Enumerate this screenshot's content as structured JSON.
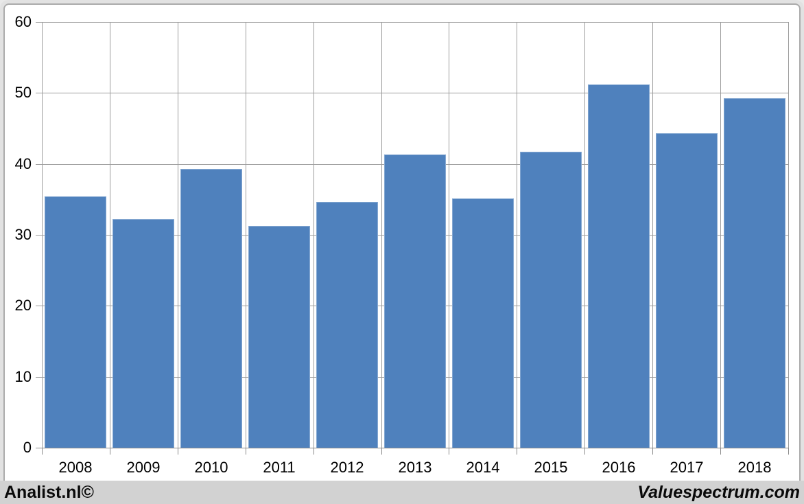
{
  "chart_data": {
    "type": "bar",
    "categories": [
      "2008",
      "2009",
      "2010",
      "2011",
      "2012",
      "2013",
      "2014",
      "2015",
      "2016",
      "2017",
      "2018"
    ],
    "values": [
      35.4,
      32.2,
      39.3,
      31.3,
      34.6,
      41.3,
      35.1,
      41.7,
      51.2,
      44.3,
      49.3
    ],
    "title": "",
    "xlabel": "",
    "ylabel": "",
    "ylim": [
      0,
      60
    ],
    "yticks": [
      0,
      10,
      20,
      30,
      40,
      50,
      60
    ],
    "grid": true,
    "legend": "none",
    "colors": {
      "bar_fill": "#4F81BD",
      "bar_border": "#86A9D2",
      "gridline": "#9C9C9C",
      "axis": "#8A8A8A",
      "tick_label": "#000000",
      "plot_background": "#FFFFFF",
      "frame_border": "#ABABAB",
      "frame_outer": "#E2E2E2"
    }
  },
  "footer": {
    "left_text": "Analist.nl©",
    "right_text": "Valuespectrum.com",
    "background": "#D2D2D2"
  }
}
